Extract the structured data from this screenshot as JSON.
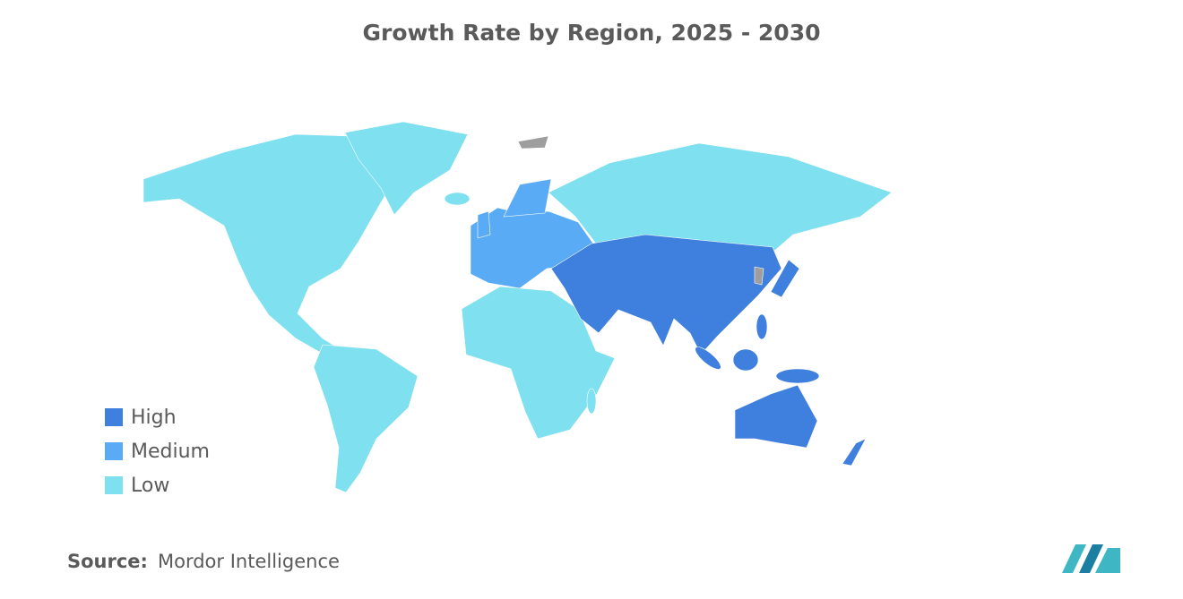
{
  "title": "Growth Rate by Region, 2025 - 2030",
  "legend": {
    "items": [
      {
        "label": "High",
        "color": "#3f7fdd"
      },
      {
        "label": "Medium",
        "color": "#5aabf5"
      },
      {
        "label": "Low",
        "color": "#7fe0ef"
      }
    ]
  },
  "source": {
    "label": "Source:",
    "text": "Mordor Intelligence"
  }
}
